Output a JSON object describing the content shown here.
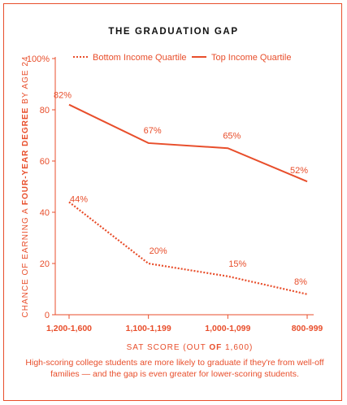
{
  "chart_data": {
    "type": "line",
    "title": "THE GRADUATION GAP",
    "xlabel_parts": [
      "SAT SCORE (OUT ",
      "OF",
      " 1,600)"
    ],
    "ylabel_parts": [
      "CHANCE OF EARNING A ",
      "FOUR-YEAR DEGREE",
      " BY AGE 24"
    ],
    "categories": [
      "1,200-1,600",
      "1,100-1,199",
      "1,000-1,099",
      "800-999"
    ],
    "yticks": [
      "0",
      "20",
      "40",
      "60",
      "80",
      "100%"
    ],
    "ylim": [
      0,
      100
    ],
    "legend_position": "top",
    "series": [
      {
        "name": "Bottom Income Quartile",
        "style": "dotted",
        "values": [
          44,
          20,
          15,
          8
        ],
        "labels": [
          "44%",
          "20%",
          "15%",
          "8%"
        ]
      },
      {
        "name": "Top Income Quartile",
        "style": "solid",
        "values": [
          82,
          67,
          65,
          52
        ],
        "labels": [
          "82%",
          "67%",
          "65%",
          "52%"
        ]
      }
    ],
    "color": "#e84e2b"
  },
  "caption": "High-scoring college students are more likely to graduate if they're from well-off families — and the gap is even greater for lower-scoring students."
}
